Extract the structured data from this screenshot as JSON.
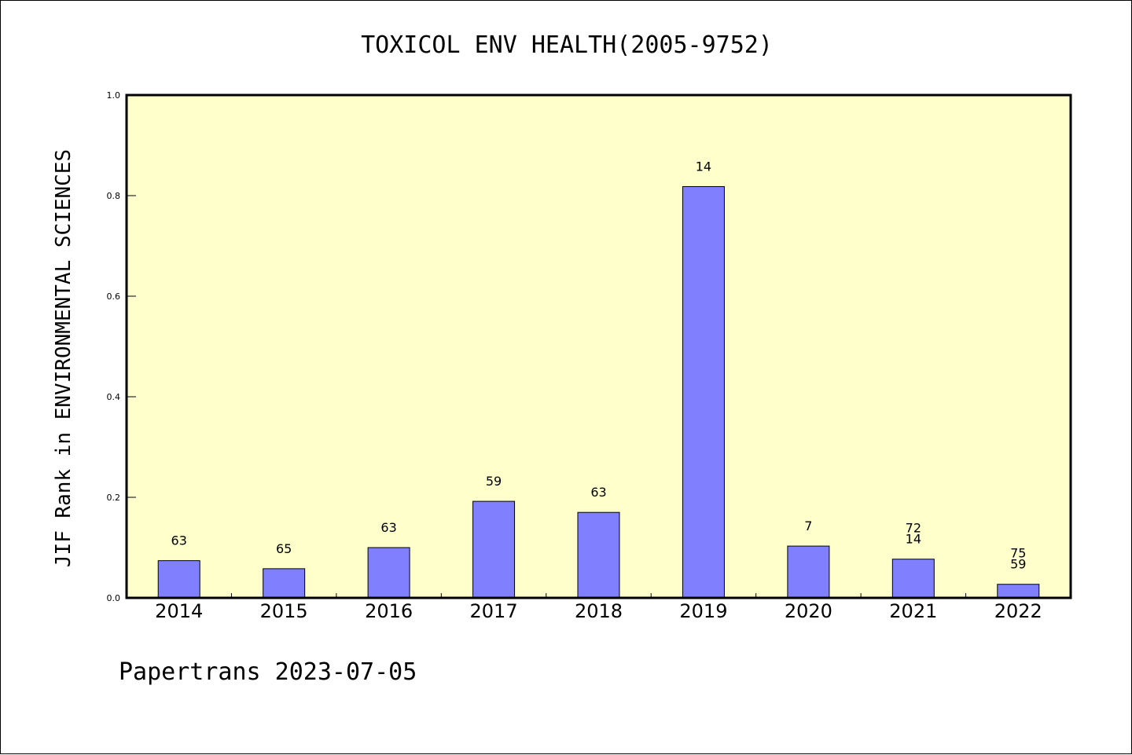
{
  "chart_data": {
    "type": "bar",
    "title": "TOXICOL ENV HEALTH(2005-9752)",
    "xlabel": "",
    "ylabel": "JIF Rank in ENVIRONMENTAL SCIENCES",
    "ylim": [
      0,
      1.0
    ],
    "yticks": [
      "0.0",
      "0.2",
      "0.4",
      "0.6",
      "0.8",
      "1.0"
    ],
    "categories": [
      "2014",
      "2015",
      "2016",
      "2017",
      "2018",
      "2019",
      "2020",
      "2021",
      "2022"
    ],
    "values": [
      0.074,
      0.058,
      0.1,
      0.192,
      0.17,
      0.818,
      0.103,
      0.077,
      0.027
    ],
    "data_labels": [
      [
        "63"
      ],
      [
        "65"
      ],
      [
        "63"
      ],
      [
        "59"
      ],
      [
        "63"
      ],
      [
        "14"
      ],
      [
        "7"
      ],
      [
        "72",
        "14"
      ],
      [
        "75",
        "59"
      ]
    ],
    "grid": false,
    "legend": "none",
    "colors": {
      "bar": "#8080ff",
      "plot_background": "#ffffcc"
    }
  },
  "footer": "Papertrans 2023-07-05"
}
